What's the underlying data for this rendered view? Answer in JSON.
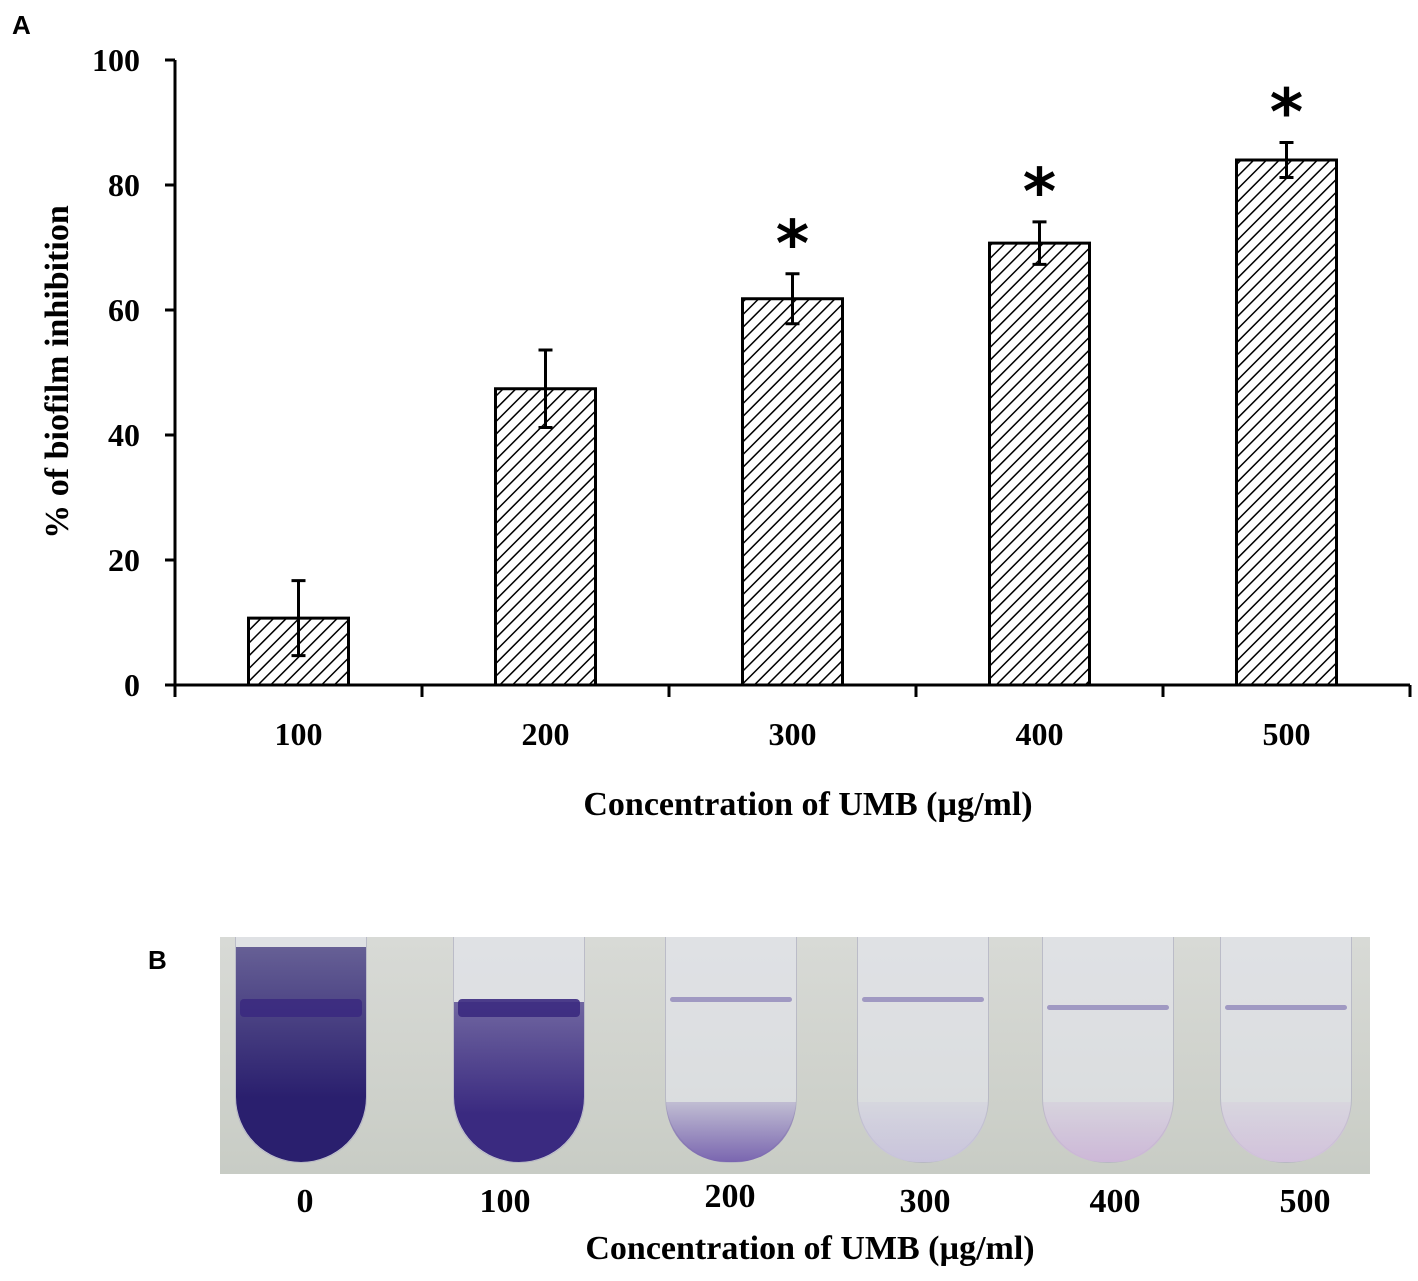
{
  "panels": {
    "a_label": "A",
    "b_label": "B"
  },
  "chart_data": {
    "type": "bar",
    "title": "",
    "xlabel": "Concentration of UMB (µg/ml)",
    "ylabel": "% of biofilm inhibition",
    "categories": [
      "100",
      "200",
      "300",
      "400",
      "500"
    ],
    "values": [
      10.7,
      47.4,
      61.8,
      70.7,
      84.0
    ],
    "error": [
      6.0,
      6.2,
      4.0,
      3.4,
      2.8
    ],
    "significance": [
      "",
      "",
      "*",
      "*",
      "*"
    ],
    "ylim": [
      0,
      100
    ],
    "yticks": [
      "0",
      "20",
      "40",
      "60",
      "80",
      "100"
    ],
    "grid": false,
    "legend": null,
    "bar_fill": "diagonal-hatch",
    "bar_color": "#000000"
  },
  "photo_panel": {
    "description": "Crystal violet stained biofilm test tubes",
    "tube_labels": [
      "0",
      "100",
      "200",
      "300",
      "400",
      "500"
    ],
    "xlabel": "Concentration of UMB (µg/ml)",
    "stain_colors": [
      "#2a1f6e",
      "#3a2a80",
      "#7a66b0",
      "#c9c4dc",
      "#cdb8d8",
      "#d2c2dc"
    ]
  }
}
